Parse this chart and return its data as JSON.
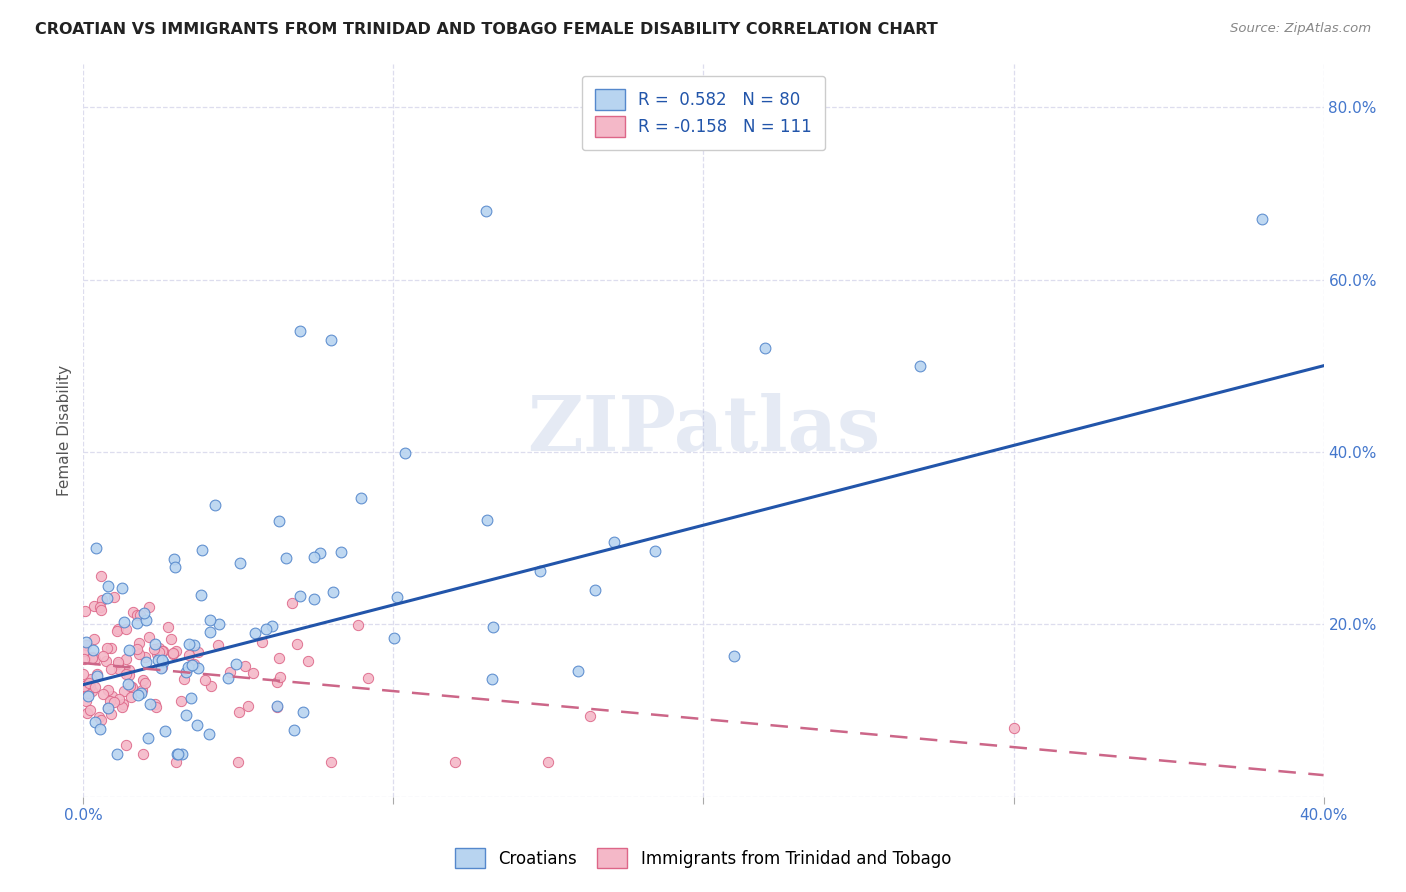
{
  "title": "CROATIAN VS IMMIGRANTS FROM TRINIDAD AND TOBAGO FEMALE DISABILITY CORRELATION CHART",
  "source": "Source: ZipAtlas.com",
  "ylabel": "Female Disability",
  "watermark": "ZIPatlas",
  "xlim": [
    0.0,
    0.4
  ],
  "ylim": [
    0.0,
    0.85
  ],
  "x_tick_vals": [
    0.0,
    0.1,
    0.2,
    0.3,
    0.4
  ],
  "x_tick_labels": [
    "0.0%",
    "",
    "",
    "",
    "40.0%"
  ],
  "y_tick_vals": [
    0.0,
    0.2,
    0.4,
    0.6,
    0.8
  ],
  "y_tick_labels": [
    "",
    "20.0%",
    "40.0%",
    "60.0%",
    "80.0%"
  ],
  "legend_label1": "R =  0.582   N = 80",
  "legend_label2": "R = -0.158   N = 111",
  "legend_color1": "#b8d4f0",
  "legend_color2": "#f4b8c8",
  "scatter_color1": "#b8d4f0",
  "scatter_color2": "#f4b8c8",
  "edge_color1": "#5588cc",
  "edge_color2": "#dd6688",
  "line_color1": "#2255aa",
  "line_color2": "#cc6688",
  "line1_x0": 0.0,
  "line1_y0": 0.13,
  "line1_x1": 0.4,
  "line1_y1": 0.5,
  "line2_x0": 0.0,
  "line2_y0": 0.155,
  "line2_x1": 0.4,
  "line2_y1": 0.025,
  "background_color": "#ffffff",
  "grid_color": "#ddddee",
  "title_color": "#222222",
  "tick_color": "#4477cc",
  "legend_box_bottom": [
    "Croatians",
    "Immigrants from Trinidad and Tobago"
  ]
}
